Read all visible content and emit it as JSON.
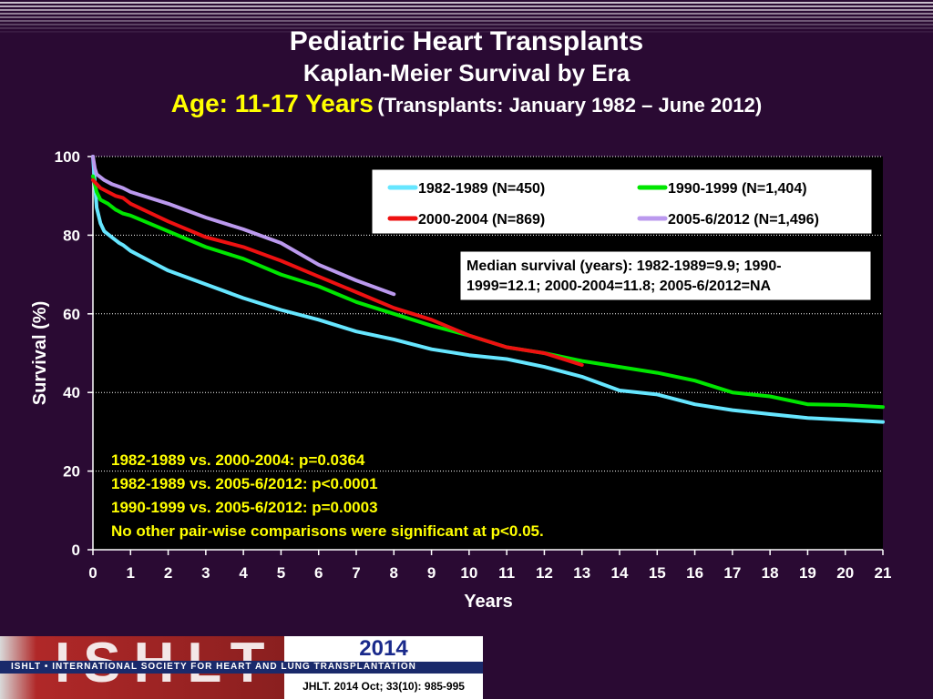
{
  "header": {
    "title": "Pediatric Heart Transplants",
    "subtitle": "Kaplan-Meier Survival by Era",
    "age_label": "Age: 11-17 Years",
    "range_label": "(Transplants: January 1982 – June 2012)"
  },
  "chart_data": {
    "type": "line",
    "xlabel": "Years",
    "ylabel": "Survival (%)",
    "xlim": [
      0,
      21
    ],
    "ylim": [
      0,
      100
    ],
    "x_ticks": [
      0,
      1,
      2,
      3,
      4,
      5,
      6,
      7,
      8,
      9,
      10,
      11,
      12,
      13,
      14,
      15,
      16,
      17,
      18,
      19,
      20,
      21
    ],
    "y_ticks": [
      0,
      20,
      40,
      60,
      80,
      100
    ],
    "grid": "horizontal dotted",
    "legend_position": "top-right",
    "series": [
      {
        "name": "1982-1989 (N=450)",
        "color": "#66e6ff",
        "x": [
          0,
          0.1,
          0.2,
          0.3,
          0.5,
          0.7,
          0.8,
          1,
          1.5,
          2,
          3,
          4,
          5,
          6,
          7,
          8,
          9,
          10,
          11,
          12,
          13,
          14,
          15,
          16,
          17,
          18,
          19,
          20,
          21
        ],
        "y": [
          100,
          87,
          83,
          81,
          79.5,
          78,
          77.5,
          76,
          73.5,
          71,
          67.5,
          64,
          61,
          58.5,
          55.5,
          53.5,
          51,
          49.5,
          48.5,
          46.5,
          44,
          40.5,
          39.5,
          37,
          35.5,
          34.5,
          33.5,
          33,
          32.5
        ]
      },
      {
        "name": "1990-1999 (N=1,404)",
        "color": "#00e600",
        "x": [
          0,
          0.1,
          0.2,
          0.4,
          0.6,
          0.8,
          1,
          2,
          3,
          4,
          5,
          6,
          7,
          8,
          9,
          10,
          11,
          12,
          13,
          14,
          15,
          16,
          17,
          18,
          19,
          20,
          21
        ],
        "y": [
          95,
          91,
          89,
          88,
          86.5,
          85.5,
          85,
          81,
          77,
          74,
          70,
          67,
          63,
          60,
          57,
          54.5,
          51.5,
          50,
          48,
          46.5,
          45,
          43,
          40,
          39,
          37,
          36.8,
          36.3
        ]
      },
      {
        "name": "2000-2004 (N=869)",
        "color": "#ee1111",
        "x": [
          0,
          0.2,
          0.4,
          0.6,
          0.8,
          1,
          2,
          3,
          4,
          5,
          6,
          7,
          8,
          9,
          10,
          11,
          12,
          13
        ],
        "y": [
          94,
          92,
          91,
          90,
          89.5,
          88,
          83.5,
          79.5,
          77,
          73.5,
          69.5,
          65.5,
          61.5,
          58.5,
          54.5,
          51.5,
          50,
          47
        ]
      },
      {
        "name": "2005-6/2012 (N=1,496)",
        "color": "#bb99ee",
        "x": [
          0,
          0.05,
          0.1,
          0.3,
          0.5,
          0.8,
          1,
          2,
          3,
          4,
          5,
          6,
          7,
          8
        ],
        "y": [
          100,
          97,
          95.5,
          94,
          93,
          92,
          91,
          88,
          84.5,
          81.5,
          78,
          72.5,
          68.5,
          65
        ]
      }
    ],
    "annotations": {
      "median_box": "Median survival (years): 1982-1989=9.9; 1990-1999=12.1; 2000-2004=11.8; 2005-6/2012=NA",
      "pvalues": [
        "1982-1989 vs. 2000-2004: p=0.0364",
        "1982-1989 vs. 2005-6/2012: p<0.0001",
        "1990-1999 vs. 2005-6/2012: p=0.0003",
        "No other pair-wise comparisons were significant at p<0.05."
      ]
    }
  },
  "footer": {
    "logo_text": "ISHLT",
    "org_band": "ISHLT • INTERNATIONAL SOCIETY FOR HEART AND LUNG TRANSPLANTATION",
    "year": "2014",
    "citation": "JHLT. 2014 Oct; 33(10): 985-995"
  },
  "colors": {
    "background": "#2a0a33",
    "plot_bg": "#000000",
    "highlight": "#ffff00"
  }
}
